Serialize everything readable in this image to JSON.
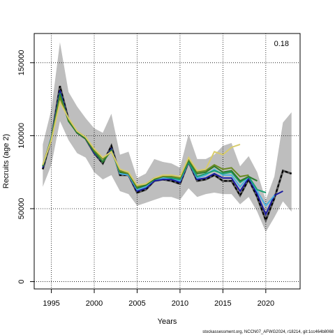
{
  "chart_data": {
    "type": "line",
    "xlabel": "Years",
    "ylabel": "Recruits (age 2)",
    "xlim": [
      1993,
      2024
    ],
    "ylim": [
      -5000,
      170000
    ],
    "x_ticks": [
      1995,
      2000,
      2005,
      2010,
      2015,
      2020
    ],
    "y_ticks": [
      0,
      50000,
      100000,
      150000
    ],
    "grid": "dotted at ticks",
    "annotation": "0.18",
    "footer": "stockassessment.org, NCCN07_AFWG2024, r18214, git:1cc464b8068",
    "interval": {
      "x": [
        1994,
        1995,
        1996,
        1997,
        1998,
        1999,
        2000,
        2001,
        2002,
        2003,
        2004,
        2005,
        2006,
        2007,
        2008,
        2009,
        2010,
        2011,
        2012,
        2013,
        2014,
        2015,
        2016,
        2017,
        2018,
        2019,
        2020,
        2021,
        2022,
        2023
      ],
      "lower": [
        65000,
        80000,
        110000,
        97000,
        88000,
        85000,
        75000,
        70000,
        73000,
        62000,
        60000,
        52000,
        54000,
        56000,
        58000,
        58000,
        56000,
        64000,
        58000,
        60000,
        61000,
        60000,
        60000,
        53000,
        58000,
        48000,
        34000,
        44000,
        55000,
        48000
      ],
      "upper": [
        94000,
        118000,
        164000,
        130000,
        120000,
        112000,
        105000,
        102000,
        115000,
        87000,
        89000,
        71000,
        74000,
        84000,
        82000,
        81000,
        78000,
        101000,
        84000,
        84000,
        87000,
        93000,
        95000,
        79000,
        86000,
        75000,
        56000,
        72000,
        109000,
        116000
      ]
    },
    "series": [
      {
        "color": "#000000",
        "dashed": true,
        "x": [
          1994,
          1995,
          1996,
          1997,
          1998,
          1999,
          2000,
          2001,
          2002,
          2003,
          2004,
          2005,
          2006,
          2007,
          2008,
          2009,
          2010,
          2011,
          2012,
          2013,
          2014,
          2015,
          2016,
          2017,
          2018,
          2019,
          2020,
          2021,
          2022,
          2023
        ],
        "y": [
          77000,
          98000,
          134000,
          111000,
          102000,
          98000,
          88000,
          81000,
          93000,
          73000,
          73000,
          61000,
          63000,
          69000,
          70000,
          69000,
          67000,
          82000,
          69000,
          70000,
          73000,
          69000,
          69000,
          59000,
          70000,
          58000,
          42000,
          57000,
          76000,
          74000
        ]
      },
      {
        "color": "#1a1aa0",
        "x": [
          1994,
          1995,
          1996,
          1997,
          1998,
          1999,
          2000,
          2001,
          2002,
          2003,
          2004,
          2005,
          2006,
          2007,
          2008,
          2009,
          2010,
          2011,
          2012,
          2013,
          2014,
          2015,
          2016,
          2017,
          2018,
          2019,
          2020,
          2021,
          2022
        ],
        "y": [
          78000,
          99000,
          131000,
          110000,
          102000,
          98000,
          88000,
          82000,
          91000,
          74000,
          73000,
          62000,
          64000,
          69000,
          70000,
          70000,
          68000,
          82000,
          70000,
          71000,
          74000,
          71000,
          71000,
          62000,
          71000,
          60000,
          46000,
          59000,
          62000
        ]
      },
      {
        "color": "#4ab0e0",
        "x": [
          1994,
          1995,
          1996,
          1997,
          1998,
          1999,
          2000,
          2001,
          2002,
          2003,
          2004,
          2005,
          2006,
          2007,
          2008,
          2009,
          2010,
          2011,
          2012,
          2013,
          2014,
          2015,
          2016,
          2017,
          2018,
          2019,
          2020,
          2021
        ],
        "y": [
          79000,
          99000,
          128000,
          110000,
          102000,
          98000,
          89000,
          82000,
          90000,
          74000,
          73000,
          63000,
          65000,
          70000,
          71000,
          71000,
          69000,
          82000,
          71000,
          73000,
          77000,
          73000,
          73000,
          65000,
          72000,
          62000,
          52000,
          59000
        ]
      },
      {
        "color": "#1aa070",
        "x": [
          1994,
          1995,
          1996,
          1997,
          1998,
          1999,
          2000,
          2001,
          2002,
          2003,
          2004,
          2005,
          2006,
          2007,
          2008,
          2009,
          2010,
          2011,
          2012,
          2013,
          2014,
          2015,
          2016,
          2017,
          2018,
          2019,
          2020
        ],
        "y": [
          79000,
          98000,
          129000,
          110000,
          102000,
          98000,
          89000,
          82000,
          90000,
          75000,
          74000,
          64000,
          66000,
          70000,
          72000,
          71000,
          70000,
          82000,
          72000,
          74000,
          76000,
          74000,
          75000,
          68000,
          72000,
          63000,
          61000
        ]
      },
      {
        "color": "#2a7a2a",
        "x": [
          1994,
          1995,
          1996,
          1997,
          1998,
          1999,
          2000,
          2001,
          2002,
          2003,
          2004,
          2005,
          2006,
          2007,
          2008,
          2009,
          2010,
          2011,
          2012,
          2013,
          2014,
          2015,
          2016,
          2017,
          2018,
          2019
        ],
        "y": [
          79000,
          98000,
          128000,
          110000,
          102000,
          98000,
          89000,
          82000,
          90000,
          75000,
          74000,
          64000,
          66000,
          70000,
          72000,
          72000,
          71000,
          83000,
          74000,
          75000,
          79000,
          75000,
          76000,
          69000,
          72000,
          69000
        ]
      },
      {
        "color": "#6a8a20",
        "x": [
          1994,
          1995,
          1996,
          1997,
          1998,
          1999,
          2000,
          2001,
          2002,
          2003,
          2004,
          2005,
          2006,
          2007,
          2008,
          2009,
          2010,
          2011,
          2012,
          2013,
          2014,
          2015,
          2016,
          2017,
          2018
        ],
        "y": [
          80000,
          98000,
          126000,
          111000,
          103000,
          99000,
          90000,
          84000,
          89000,
          76000,
          74000,
          65000,
          67000,
          71000,
          72000,
          72000,
          71000,
          84000,
          75000,
          76000,
          80000,
          77000,
          78000,
          72000,
          73000
        ]
      },
      {
        "color": "#d8cc6c",
        "x": [
          1994,
          1995,
          1996,
          1997,
          1998,
          1999,
          2000,
          2001,
          2002,
          2003,
          2004,
          2005,
          2006,
          2007,
          2008,
          2009,
          2010,
          2011,
          2012,
          2013,
          2014,
          2015,
          2016,
          2017
        ],
        "y": [
          80000,
          97000,
          123000,
          112000,
          103000,
          99000,
          91000,
          85000,
          89000,
          77000,
          75000,
          66000,
          67000,
          71000,
          73000,
          73000,
          72000,
          85000,
          76000,
          77000,
          89000,
          87000,
          92000,
          94000
        ]
      }
    ]
  }
}
